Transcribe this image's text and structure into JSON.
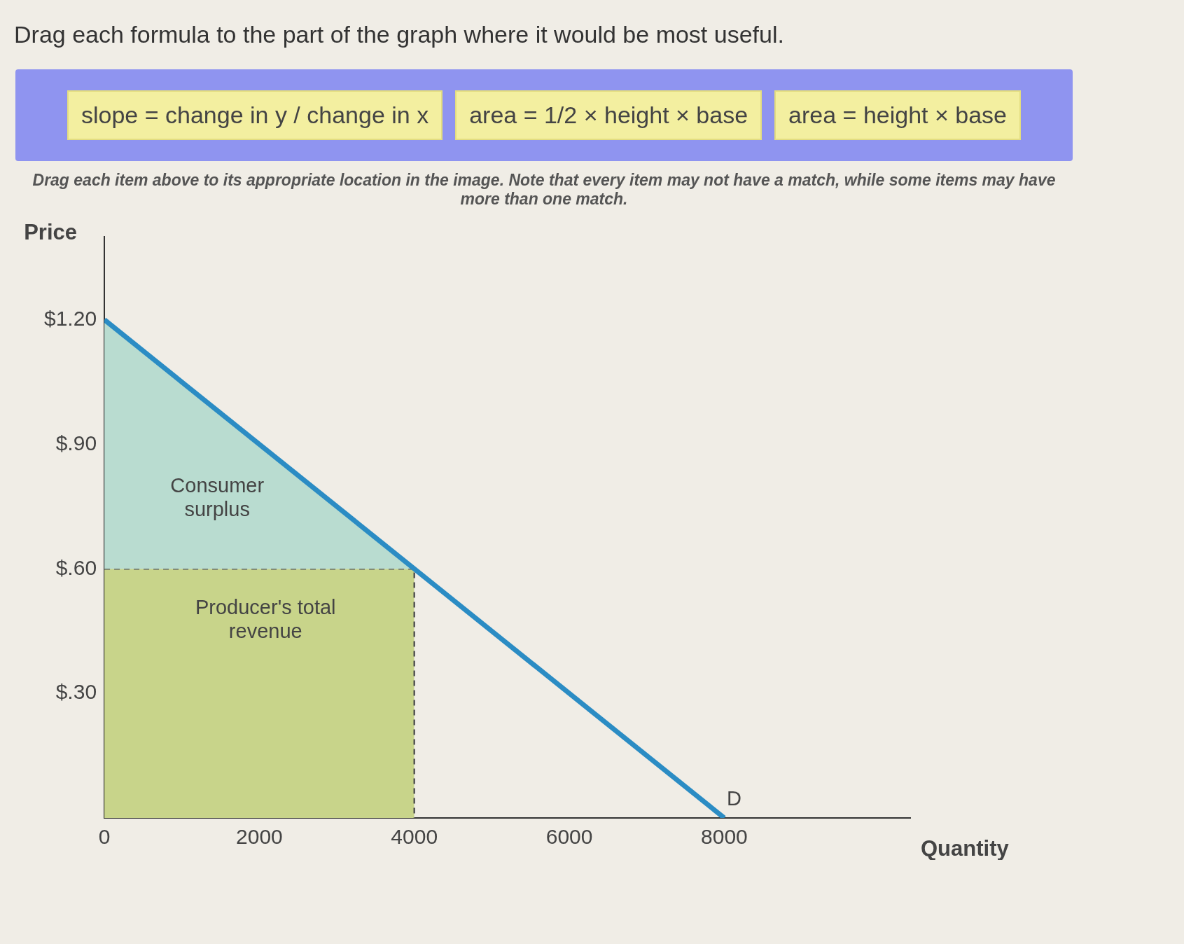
{
  "chart_data": {
    "type": "line",
    "title": "Drag each formula to the part of the graph where it would be most useful.",
    "subtitle": "Drag each item above to its appropriate location in the image. Note that every item may not have a match, while some items may have more than one match.",
    "xlabel": "Quantity",
    "ylabel": "Price",
    "annotations": [
      "slope = change in y / change in x",
      "area = 1/2 × height × base",
      "area = height × base",
      "Consumer surplus",
      "Producer's total revenue",
      "D"
    ],
    "series": [
      {
        "type": "area",
        "color": "#c8d48a",
        "x": [
          0,
          4000,
          4000
        ],
        "values": [
          0.6,
          0.6,
          0
        ],
        "line_style": "dashed"
      },
      {
        "type": "area",
        "color": "#b9dcd0",
        "x": [
          0,
          4000
        ],
        "values": [
          1.2,
          0.6
        ]
      },
      {
        "type": "line",
        "color": "#2b8cc4",
        "x": [
          0,
          8000
        ],
        "values": [
          1.2,
          0
        ]
      }
    ],
    "xlim": [
      0,
      10400
    ],
    "xticks": [
      0,
      2000,
      4000,
      6000,
      8000
    ],
    "ylim": [
      0,
      1.4
    ],
    "yticks": [
      {
        "value": 0.3,
        "label": "$.30"
      },
      {
        "value": 0.6,
        "label": "$.60"
      },
      {
        "value": 0.9,
        "label": "$.90"
      },
      {
        "value": 1.2,
        "label": "$1.20"
      }
    ],
    "grid": false,
    "legend": false,
    "marker": "none"
  }
}
